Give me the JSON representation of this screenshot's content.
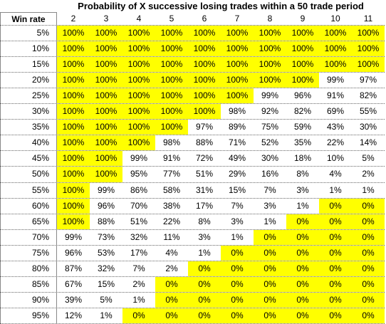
{
  "table": {
    "title": "Probability of X successive losing trades within a 50 trade period",
    "row_header": "Win rate",
    "columns": [
      "2",
      "3",
      "4",
      "5",
      "6",
      "7",
      "8",
      "9",
      "10",
      "11"
    ],
    "highlight_color": "#ffff00",
    "rows": [
      [
        "5%",
        "100%",
        "100%",
        "100%",
        "100%",
        "100%",
        "100%",
        "100%",
        "100%",
        "100%",
        "100%"
      ],
      [
        "10%",
        "100%",
        "100%",
        "100%",
        "100%",
        "100%",
        "100%",
        "100%",
        "100%",
        "100%",
        "100%"
      ],
      [
        "15%",
        "100%",
        "100%",
        "100%",
        "100%",
        "100%",
        "100%",
        "100%",
        "100%",
        "100%",
        "100%"
      ],
      [
        "20%",
        "100%",
        "100%",
        "100%",
        "100%",
        "100%",
        "100%",
        "100%",
        "100%",
        "99%",
        "97%"
      ],
      [
        "25%",
        "100%",
        "100%",
        "100%",
        "100%",
        "100%",
        "100%",
        "99%",
        "96%",
        "91%",
        "82%"
      ],
      [
        "30%",
        "100%",
        "100%",
        "100%",
        "100%",
        "100%",
        "98%",
        "92%",
        "82%",
        "69%",
        "55%"
      ],
      [
        "35%",
        "100%",
        "100%",
        "100%",
        "100%",
        "97%",
        "89%",
        "75%",
        "59%",
        "43%",
        "30%"
      ],
      [
        "40%",
        "100%",
        "100%",
        "100%",
        "98%",
        "88%",
        "71%",
        "52%",
        "35%",
        "22%",
        "14%"
      ],
      [
        "45%",
        "100%",
        "100%",
        "99%",
        "91%",
        "72%",
        "49%",
        "30%",
        "18%",
        "10%",
        "5%"
      ],
      [
        "50%",
        "100%",
        "100%",
        "95%",
        "77%",
        "51%",
        "29%",
        "16%",
        "8%",
        "4%",
        "2%"
      ],
      [
        "55%",
        "100%",
        "99%",
        "86%",
        "58%",
        "31%",
        "15%",
        "7%",
        "3%",
        "1%",
        "1%"
      ],
      [
        "60%",
        "100%",
        "96%",
        "70%",
        "38%",
        "17%",
        "7%",
        "3%",
        "1%",
        "0%",
        "0%"
      ],
      [
        "65%",
        "100%",
        "88%",
        "51%",
        "22%",
        "8%",
        "3%",
        "1%",
        "0%",
        "0%",
        "0%"
      ],
      [
        "70%",
        "99%",
        "73%",
        "32%",
        "11%",
        "3%",
        "1%",
        "0%",
        "0%",
        "0%",
        "0%"
      ],
      [
        "75%",
        "96%",
        "53%",
        "17%",
        "4%",
        "1%",
        "0%",
        "0%",
        "0%",
        "0%",
        "0%"
      ],
      [
        "80%",
        "87%",
        "32%",
        "7%",
        "2%",
        "0%",
        "0%",
        "0%",
        "0%",
        "0%",
        "0%"
      ],
      [
        "85%",
        "67%",
        "15%",
        "2%",
        "0%",
        "0%",
        "0%",
        "0%",
        "0%",
        "0%",
        "0%"
      ],
      [
        "90%",
        "39%",
        "5%",
        "1%",
        "0%",
        "0%",
        "0%",
        "0%",
        "0%",
        "0%",
        "0%"
      ],
      [
        "95%",
        "12%",
        "1%",
        "0%",
        "0%",
        "0%",
        "0%",
        "0%",
        "0%",
        "0%",
        "0%"
      ]
    ]
  }
}
